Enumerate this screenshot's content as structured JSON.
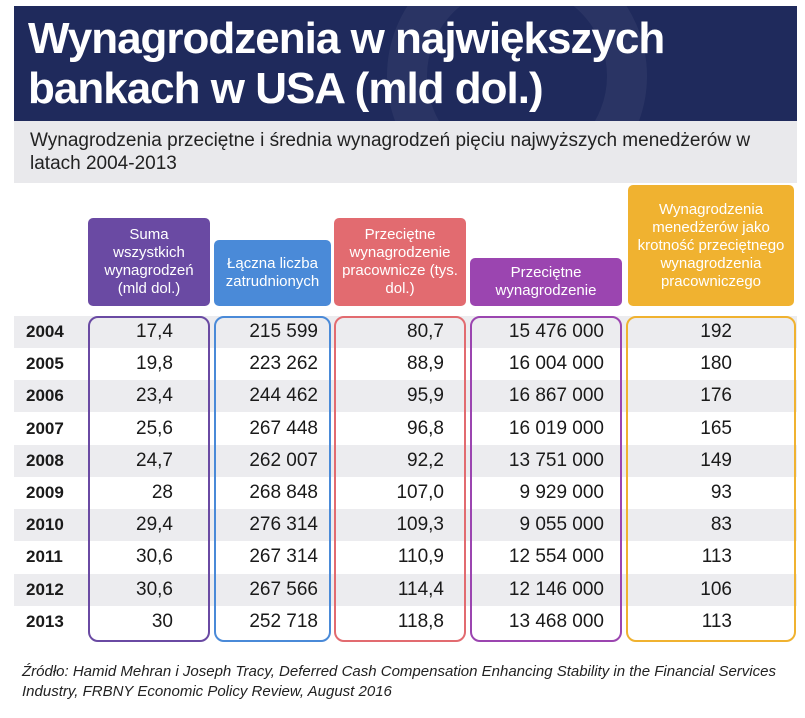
{
  "header": {
    "title": "Wynagrodzenia w największych bankach w USA (mld dol.)",
    "subtitle": "Wynagrodzenia przeciętne i średnia wynagrodzeń pięciu najwyższych menedżerów w latach 2004-2013"
  },
  "chart_data": {
    "type": "table",
    "title": "Wynagrodzenia w największych bankach w USA (mld dol.)",
    "columns": [
      {
        "label": "Suma wszystkich wynagrodzeń (mld dol.)",
        "color": "#6a4aa3"
      },
      {
        "label": "Łączna liczba zatrudnionych",
        "color": "#4a8ad8"
      },
      {
        "label": "Przeciętne wynagrodzenie pracownicze (tys. dol.)",
        "color": "#e26b70"
      },
      {
        "label": "Przeciętne wynagrodzenie",
        "color": "#9b45b0"
      },
      {
        "label": "Wynagrodzenia menedżerów jako krotność przeciętnego wynagrodzenia pracowniczego",
        "color": "#f0b230"
      }
    ],
    "rows": [
      {
        "year": "2004",
        "values": [
          "17,4",
          "215 599",
          "80,7",
          "15 476 000",
          "192"
        ]
      },
      {
        "year": "2005",
        "values": [
          "19,8",
          "223 262",
          "88,9",
          "16 004 000",
          "180"
        ]
      },
      {
        "year": "2006",
        "values": [
          "23,4",
          "244 462",
          "95,9",
          "16 867 000",
          "176"
        ]
      },
      {
        "year": "2007",
        "values": [
          "25,6",
          "267 448",
          "96,8",
          "16 019 000",
          "165"
        ]
      },
      {
        "year": "2008",
        "values": [
          "24,7",
          "262 007",
          "92,2",
          "13 751 000",
          "149"
        ]
      },
      {
        "year": "2009",
        "values": [
          "28",
          "268 848",
          "107,0",
          "9 929 000",
          "93"
        ]
      },
      {
        "year": "2010",
        "values": [
          "29,4",
          "276 314",
          "109,3",
          "9 055 000",
          "83"
        ]
      },
      {
        "year": "2011",
        "values": [
          "30,6",
          "267 314",
          "110,9",
          "12 554 000",
          "113"
        ]
      },
      {
        "year": "2012",
        "values": [
          "30,6",
          "267 566",
          "114,4",
          "12 146 000",
          "106"
        ]
      },
      {
        "year": "2013",
        "values": [
          "30",
          "252 718",
          "118,8",
          "13 468 000",
          "113"
        ]
      }
    ]
  },
  "footer": {
    "source": "Źródło: Hamid Mehran i Joseph Tracy, Deferred Cash Compensation Enhancing Stability in the Financial Services Industry, FRBNY Economic Policy Review, August 2016"
  }
}
